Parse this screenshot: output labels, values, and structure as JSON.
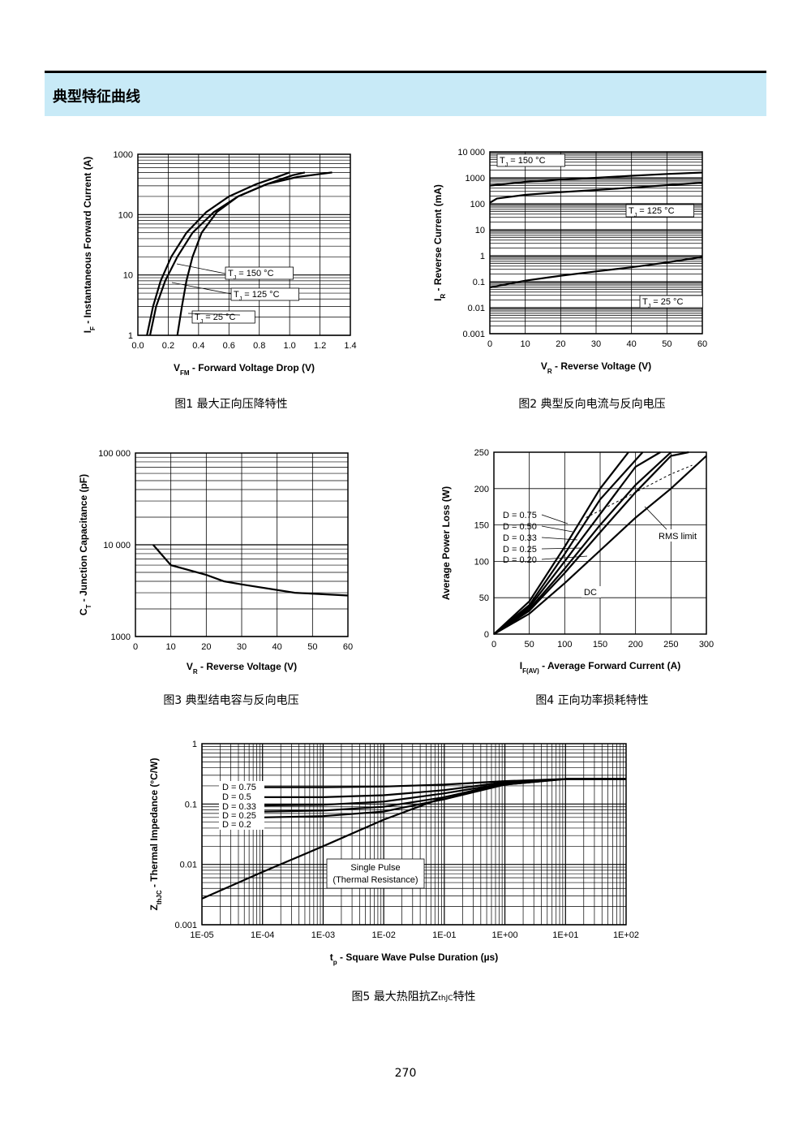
{
  "section_title": "典型特征曲线",
  "page_number": "270",
  "chart_data": [
    {
      "type": "line",
      "caption": "图1  最大正向压降特性",
      "xlabel": "V_FM - Forward Voltage Drop (V)",
      "ylabel": "I_F - Instantaneous Forward Current (A)",
      "xlim": [
        0.0,
        1.4
      ],
      "ylim": [
        1,
        1000
      ],
      "yscale": "log",
      "grid": true,
      "xticks": [
        "0.0",
        "0.2",
        "0.4",
        "0.6",
        "0.8",
        "1.0",
        "1.2",
        "1.4"
      ],
      "yticks": [
        "1",
        "10",
        "100",
        "1000"
      ],
      "series": [
        {
          "name": "T_J = 150 °C",
          "x": [
            0.06,
            0.1,
            0.15,
            0.22,
            0.32,
            0.45,
            0.6,
            0.78,
            0.95,
            1.0
          ],
          "y": [
            1,
            3,
            8,
            20,
            50,
            110,
            200,
            320,
            450,
            500
          ]
        },
        {
          "name": "T_J = 125 °C",
          "x": [
            0.08,
            0.12,
            0.18,
            0.26,
            0.36,
            0.5,
            0.66,
            0.85,
            1.02,
            1.1
          ],
          "y": [
            1,
            3,
            8,
            20,
            50,
            110,
            200,
            320,
            450,
            500
          ]
        },
        {
          "name": "T_J = 25 °C",
          "x": [
            0.26,
            0.29,
            0.32,
            0.36,
            0.42,
            0.52,
            0.66,
            0.85,
            1.05,
            1.28
          ],
          "y": [
            1,
            3,
            8,
            20,
            50,
            110,
            200,
            320,
            420,
            500
          ]
        }
      ]
    },
    {
      "type": "line",
      "caption": "图2  典型反向电流与反向电压",
      "xlabel": "V_R - Reverse Voltage (V)",
      "ylabel": "I_R - Reverse Current (mA)",
      "xlim": [
        0,
        60
      ],
      "ylim": [
        0.001,
        10000
      ],
      "yscale": "log",
      "grid": true,
      "xticks": [
        "0",
        "10",
        "20",
        "30",
        "40",
        "50",
        "60"
      ],
      "yticks": [
        "0.001",
        "0.01",
        "0.1",
        "1",
        "10",
        "100",
        "1000",
        "10 000"
      ],
      "series": [
        {
          "name": "T_J = 150 °C",
          "x": [
            0,
            10,
            20,
            30,
            40,
            50,
            60
          ],
          "y": [
            500,
            700,
            850,
            1000,
            1200,
            1400,
            1600
          ]
        },
        {
          "name": "T_J = 125 °C",
          "x": [
            0,
            2,
            10,
            20,
            30,
            40,
            50,
            60
          ],
          "y": [
            110,
            160,
            220,
            280,
            340,
            420,
            520,
            650
          ]
        },
        {
          "name": "T_J = 25 °C",
          "x": [
            0,
            10,
            20,
            30,
            40,
            50,
            60
          ],
          "y": [
            0.06,
            0.11,
            0.17,
            0.25,
            0.36,
            0.55,
            0.9
          ]
        }
      ]
    },
    {
      "type": "line",
      "caption": "图3  典型结电容与反向电压",
      "xlabel": "V_R - Reverse Voltage (V)",
      "ylabel": "C_T - Junction Capacitance (pF)",
      "xlim": [
        0,
        60
      ],
      "ylim": [
        1000,
        100000
      ],
      "yscale": "log",
      "grid": true,
      "xticks": [
        "0",
        "10",
        "20",
        "30",
        "40",
        "50",
        "60"
      ],
      "yticks": [
        "1000",
        "10 000",
        "100 000"
      ],
      "series": [
        {
          "name": "",
          "x": [
            5,
            10,
            20,
            25,
            30,
            45,
            60
          ],
          "y": [
            10000,
            6000,
            4700,
            4000,
            3700,
            3000,
            2800
          ]
        }
      ]
    },
    {
      "type": "line",
      "caption": "图4  正向功率损耗特性",
      "xlabel": "I_F(AV) - Average Forward Current (A)",
      "ylabel": "Average Power Loss (W)",
      "xlim": [
        0,
        300
      ],
      "ylim": [
        0,
        250
      ],
      "grid": true,
      "xticks": [
        "0",
        "50",
        "100",
        "150",
        "200",
        "250",
        "300"
      ],
      "yticks": [
        "0",
        "50",
        "100",
        "150",
        "200",
        "250"
      ],
      "annotations": [
        "RMS limit",
        "DC"
      ],
      "series": [
        {
          "name": "D = 0.75",
          "x": [
            0,
            50,
            100,
            150,
            190
          ],
          "y": [
            0,
            45,
            120,
            200,
            250
          ]
        },
        {
          "name": "D = 0.50",
          "x": [
            0,
            50,
            100,
            150,
            210
          ],
          "y": [
            0,
            40,
            110,
            185,
            250
          ]
        },
        {
          "name": "D = 0.33",
          "x": [
            0,
            50,
            100,
            150,
            200,
            235
          ],
          "y": [
            0,
            37,
            100,
            165,
            230,
            250
          ]
        },
        {
          "name": "D = 0.25",
          "x": [
            0,
            50,
            100,
            150,
            200,
            250
          ],
          "y": [
            0,
            34,
            90,
            150,
            205,
            250
          ]
        },
        {
          "name": "D = 0.20",
          "x": [
            0,
            50,
            100,
            150,
            200,
            250,
            275
          ],
          "y": [
            0,
            32,
            84,
            140,
            195,
            245,
            250
          ]
        },
        {
          "name": "DC",
          "x": [
            0,
            50,
            100,
            150,
            200,
            250,
            300
          ],
          "y": [
            0,
            28,
            70,
            115,
            160,
            200,
            245
          ]
        },
        {
          "name": "RMS limit",
          "x": [
            130,
            170,
            210,
            250,
            280
          ],
          "y": [
            160,
            180,
            200,
            220,
            232
          ]
        }
      ]
    },
    {
      "type": "line",
      "caption": "图5  最大热阻抗Z",
      "caption_sub": "thJC",
      "caption_tail": "特性",
      "xlabel": "t_p - Square Wave Pulse Duration (µs)",
      "ylabel": "Z_thJC - Thermal Impedance (°C/W)",
      "xlim": [
        1e-05,
        100
      ],
      "ylim": [
        0.001,
        1
      ],
      "xscale": "log",
      "yscale": "log",
      "grid": true,
      "xticks": [
        "1E-05",
        "1E-04",
        "1E-03",
        "1E-02",
        "1E-01",
        "1E+00",
        "1E+01",
        "1E+02"
      ],
      "yticks": [
        "0.001",
        "0.01",
        "0.1",
        "1"
      ],
      "annotations": [
        "Single Pulse",
        "(Thermal Resistance)"
      ],
      "series": [
        {
          "name": "D = 0.75",
          "x": [
            0.0001,
            0.001,
            0.01,
            0.1,
            1,
            10,
            100
          ],
          "y": [
            0.19,
            0.19,
            0.195,
            0.21,
            0.24,
            0.26,
            0.26
          ]
        },
        {
          "name": "D = 0.5",
          "x": [
            0.0001,
            0.001,
            0.01,
            0.1,
            1,
            10,
            100
          ],
          "y": [
            0.13,
            0.13,
            0.14,
            0.17,
            0.23,
            0.26,
            0.26
          ]
        },
        {
          "name": "D = 0.33",
          "x": [
            0.0001,
            0.001,
            0.01,
            0.1,
            1,
            10,
            100
          ],
          "y": [
            0.095,
            0.097,
            0.11,
            0.15,
            0.22,
            0.26,
            0.26
          ]
        },
        {
          "name": "D = 0.25",
          "x": [
            0.0001,
            0.001,
            0.01,
            0.1,
            1,
            10,
            100
          ],
          "y": [
            0.075,
            0.078,
            0.09,
            0.13,
            0.21,
            0.26,
            0.26
          ]
        },
        {
          "name": "D = 0.2",
          "x": [
            0.0001,
            0.001,
            0.01,
            0.1,
            1,
            10,
            100
          ],
          "y": [
            0.06,
            0.063,
            0.075,
            0.12,
            0.21,
            0.26,
            0.26
          ]
        },
        {
          "name": "Single Pulse",
          "x": [
            1e-05,
            0.0001,
            0.001,
            0.01,
            0.1,
            1,
            10,
            100
          ],
          "y": [
            0.0027,
            0.0075,
            0.02,
            0.055,
            0.13,
            0.22,
            0.26,
            0.26
          ]
        }
      ]
    }
  ]
}
